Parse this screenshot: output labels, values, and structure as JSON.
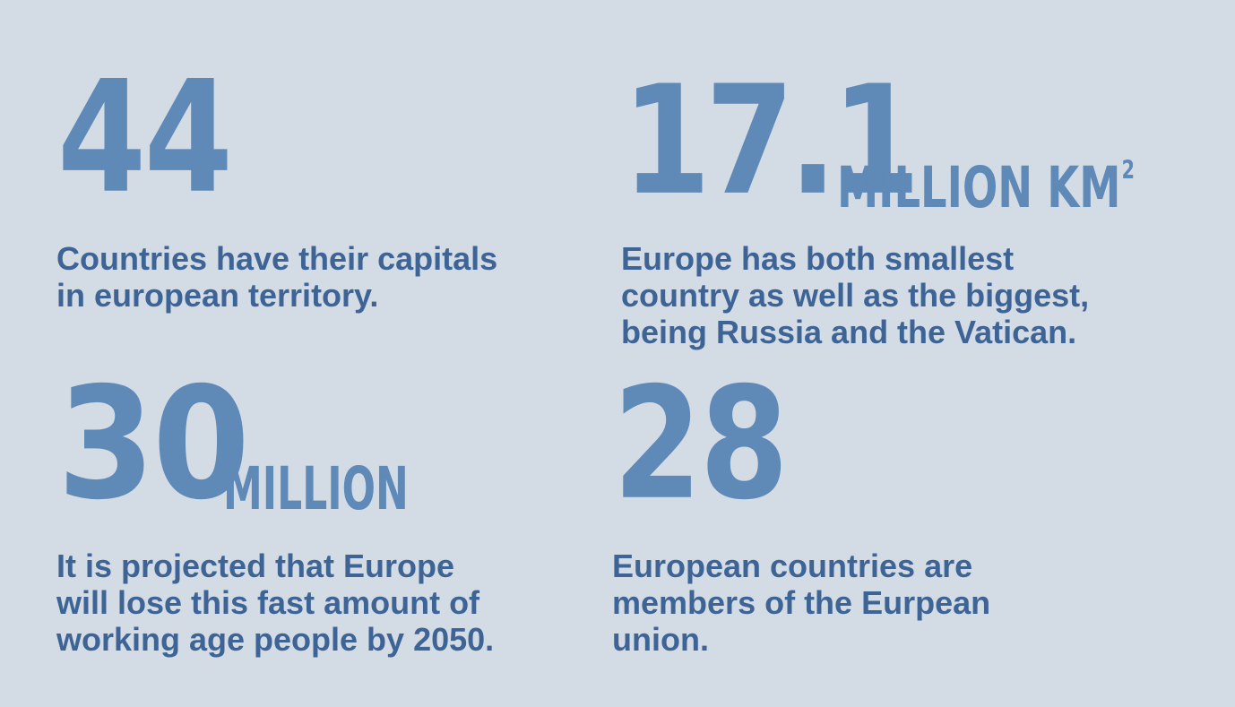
{
  "stats": [
    {
      "number": "44",
      "unit": "",
      "unit_sup": "",
      "description_lines": [
        "Countries have their capitals",
        "in european territory."
      ]
    },
    {
      "number": "17.1",
      "unit": "MILLION KM",
      "unit_sup": "2",
      "description_lines": [
        "Europe has both smallest",
        "country as well as the biggest,",
        "being Russia and the Vatican."
      ]
    },
    {
      "number": "30",
      "unit": "MILLION",
      "unit_sup": "",
      "description_lines": [
        "It is projected that Europe",
        "will lose this fast amount of",
        "working age people by 2050."
      ]
    },
    {
      "number": "28",
      "unit": "",
      "unit_sup": "",
      "description_lines": [
        "European countries are",
        "members of the Eurpean",
        "union."
      ]
    }
  ],
  "colors": {
    "background": "#d3dbe5",
    "number": "#5f89b6",
    "text": "#3e6496"
  }
}
